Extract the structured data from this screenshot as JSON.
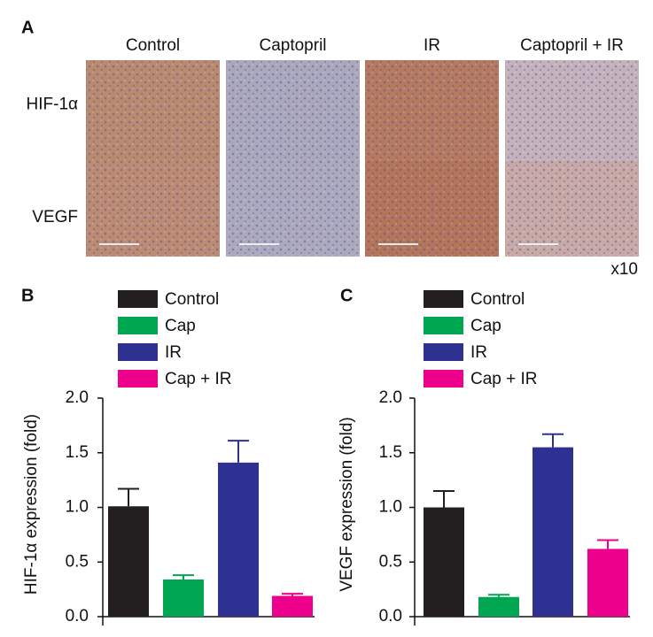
{
  "panel_a": {
    "label": "A",
    "columns": [
      "Control",
      "Captopril",
      "IR",
      "Captopril + IR"
    ],
    "rows": [
      "HIF-1α",
      "VEGF"
    ],
    "magnification": "x10"
  },
  "chart_data": [
    {
      "type": "bar",
      "label": "B",
      "ylabel": "HIF-1α expression (fold)",
      "categories": [
        "Control",
        "Cap",
        "IR",
        "Cap + IR"
      ],
      "values": [
        1.01,
        0.34,
        1.41,
        0.19
      ],
      "errors": [
        0.16,
        0.04,
        0.2,
        0.02
      ],
      "colors": [
        "#231f20",
        "#00a651",
        "#2e3192",
        "#ec008c"
      ],
      "ylim": [
        0,
        2
      ],
      "yticks": [
        {
          "value": 0,
          "label": "0.0"
        },
        {
          "value": 0.5,
          "label": "0.5"
        },
        {
          "value": 1,
          "label": "1.0"
        },
        {
          "value": 1.5,
          "label": "1.5"
        },
        {
          "value": 2,
          "label": "2.0"
        }
      ]
    },
    {
      "type": "bar",
      "label": "C",
      "ylabel": "VEGF expression (fold)",
      "categories": [
        "Control",
        "Cap",
        "IR",
        "Cap + IR"
      ],
      "values": [
        1.0,
        0.18,
        1.55,
        0.62
      ],
      "errors": [
        0.15,
        0.02,
        0.12,
        0.08
      ],
      "colors": [
        "#231f20",
        "#00a651",
        "#2e3192",
        "#ec008c"
      ],
      "ylim": [
        0,
        2
      ],
      "yticks": [
        {
          "value": 0,
          "label": "0.0"
        },
        {
          "value": 0.5,
          "label": "0.5"
        },
        {
          "value": 1,
          "label": "1.0"
        },
        {
          "value": 1.5,
          "label": "1.5"
        },
        {
          "value": 2,
          "label": "2.0"
        }
      ]
    }
  ]
}
